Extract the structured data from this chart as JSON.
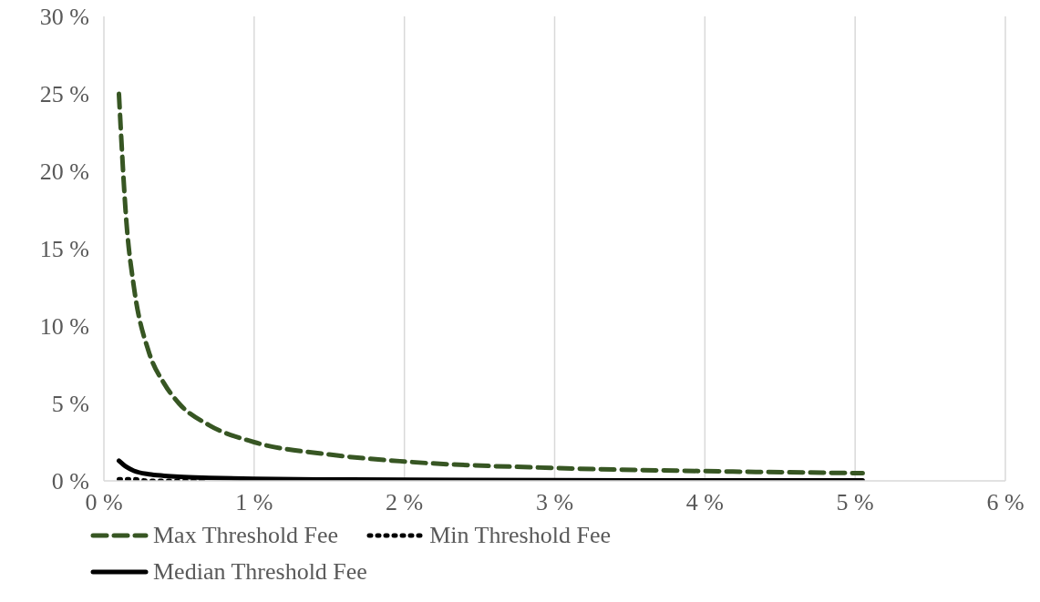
{
  "chart_data": {
    "type": "line",
    "x": [
      0.1,
      0.15,
      0.2,
      0.3,
      0.4,
      0.5,
      0.7,
      1,
      1.5,
      2,
      3,
      4,
      5.05
    ],
    "series": [
      {
        "name": "Max Threshold Fee",
        "color": "#375623",
        "line_style": "dashed",
        "values": [
          25,
          16.7,
          12.5,
          8.3,
          6.3,
          5,
          3.6,
          2.5,
          1.7,
          1.25,
          0.83,
          0.63,
          0.5
        ]
      },
      {
        "name": "Min Threshold Fee",
        "color": "#000000",
        "line_style": "dotted",
        "values": [
          0.1,
          0.1,
          0.1,
          0,
          0,
          0,
          0,
          null,
          null,
          null,
          null,
          null,
          null
        ]
      },
      {
        "name": "Median Threshold Fee",
        "color": "#000000",
        "line_style": "solid",
        "values": [
          1.3,
          0.9,
          0.65,
          0.43,
          0.33,
          0.26,
          0.19,
          0.13,
          0.09,
          0.07,
          0.04,
          0.03,
          0.03
        ]
      }
    ],
    "xlim": [
      0,
      6
    ],
    "xticks": [
      {
        "value": 0,
        "label": "0 %"
      },
      {
        "value": 1,
        "label": "1 %"
      },
      {
        "value": 2,
        "label": "2 %"
      },
      {
        "value": 3,
        "label": "3 %"
      },
      {
        "value": 4,
        "label": "4 %"
      },
      {
        "value": 5,
        "label": "5 %"
      },
      {
        "value": 6,
        "label": "6 %"
      }
    ],
    "ylim": [
      0,
      30
    ],
    "yticks": [
      {
        "value": 0,
        "label": "0 %"
      },
      {
        "value": 5,
        "label": "5 %"
      },
      {
        "value": 10,
        "label": "10 %"
      },
      {
        "value": 15,
        "label": "15 %"
      },
      {
        "value": 20,
        "label": "20 %"
      },
      {
        "value": 25,
        "label": "25 %"
      },
      {
        "value": 30,
        "label": "30 %"
      }
    ],
    "grid": "x",
    "legend": "bottom",
    "marker": "none"
  }
}
